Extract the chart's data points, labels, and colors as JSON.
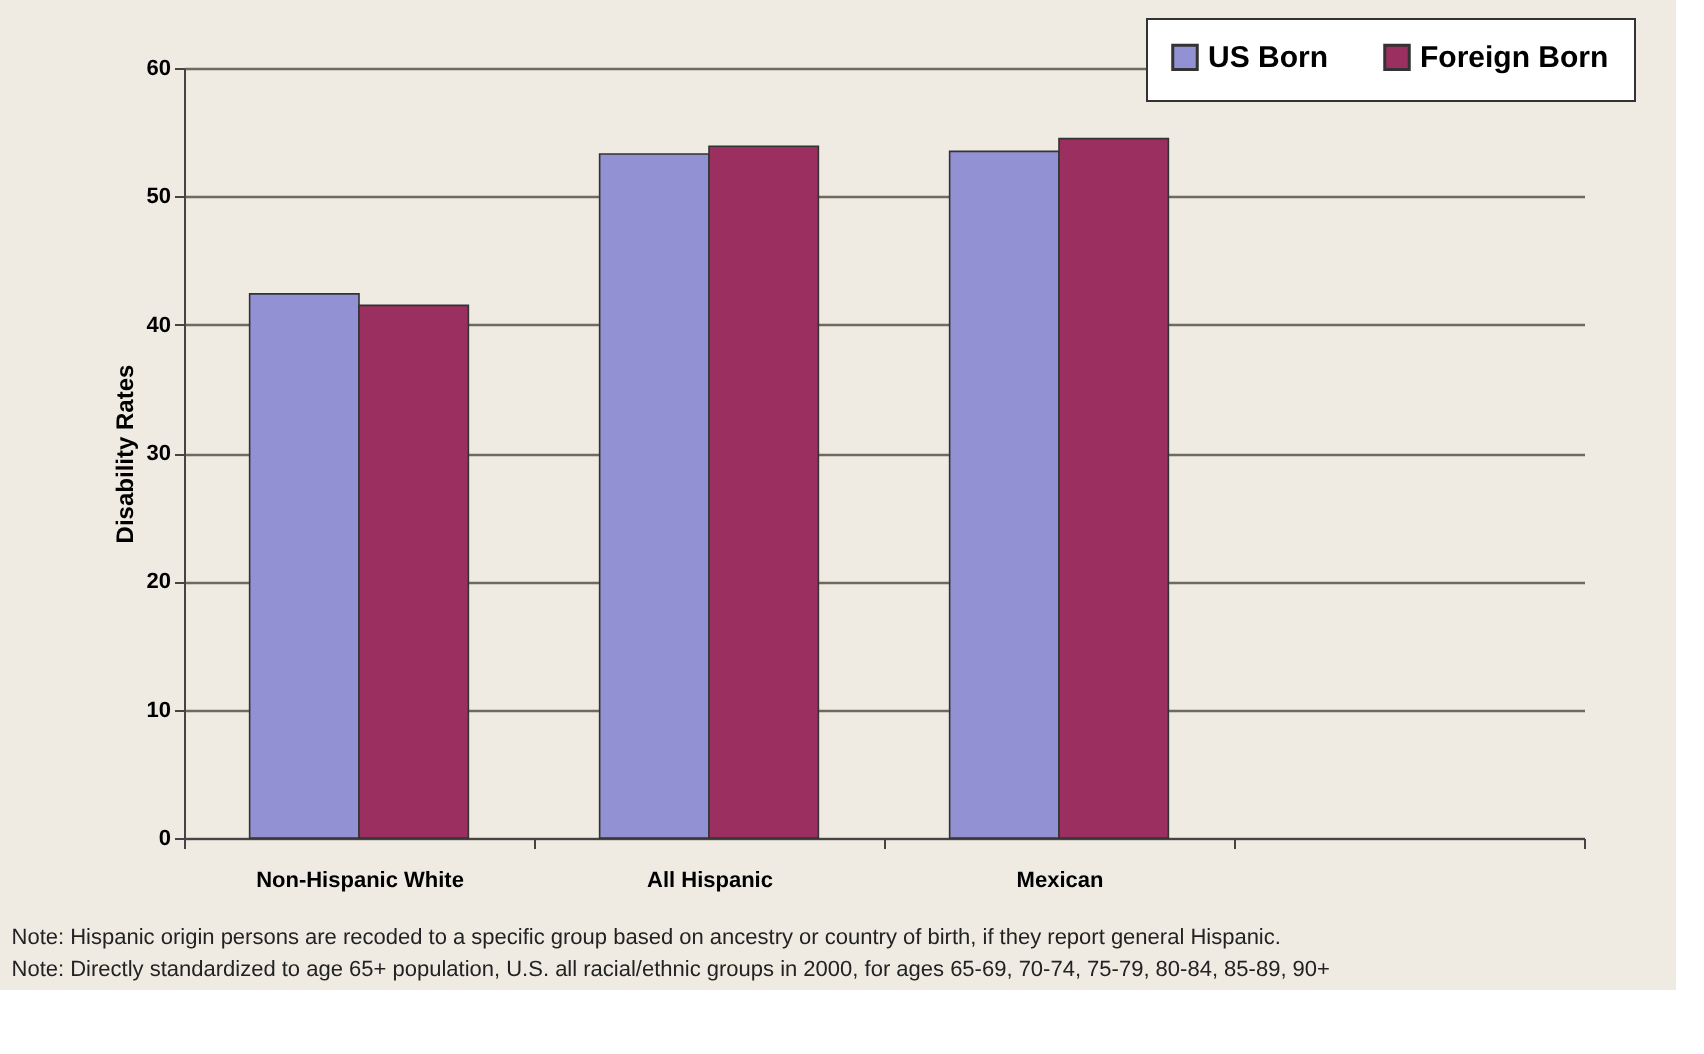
{
  "chart_data": {
    "type": "bar",
    "ylabel": "Disability Rates",
    "categories": [
      "Non-Hispanic White",
      "All Hispanic",
      "Mexican",
      null
    ],
    "series": [
      {
        "name": "US Born",
        "color": "#9191d4",
        "values": [
          42.4,
          53.3,
          53.5,
          null
        ]
      },
      {
        "name": "Foreign Born",
        "color": "#9b3060",
        "values": [
          41.5,
          53.9,
          54.5,
          null
        ]
      }
    ],
    "ylim": [
      0,
      60
    ],
    "yticks": [
      0,
      10,
      20,
      30,
      40,
      50,
      60
    ],
    "grid": "y",
    "legend": "top right",
    "annotations": [
      "Note: Hispanic origin persons are recoded to a specific group based on ancestry or country of birth,  if they report general Hispanic.",
      "Note: Directly standardized to age 65+ population, U.S. all racial/ethnic groups in 2000, for ages 65-69, 70-74, 75-79, 80-84, 85-89, 90+"
    ]
  }
}
